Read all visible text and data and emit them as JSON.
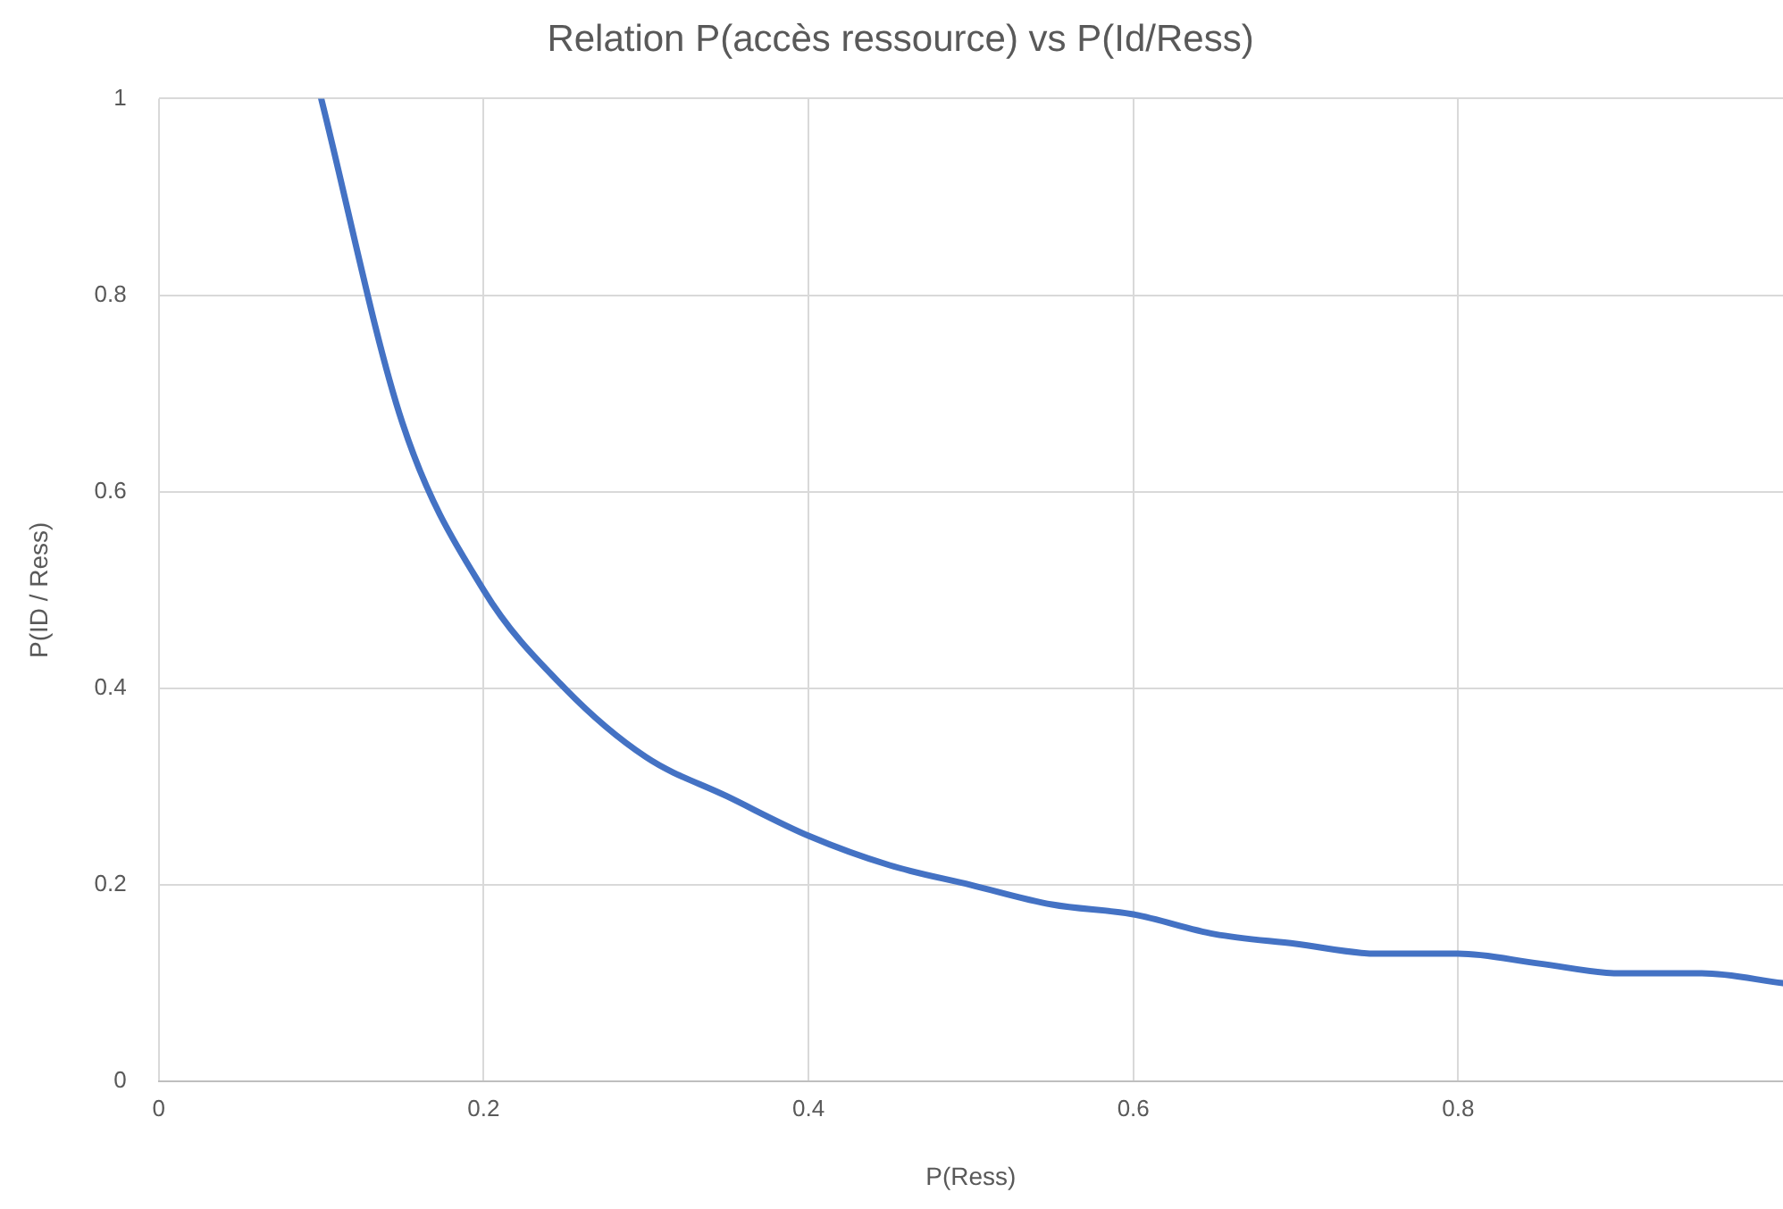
{
  "chart_data": {
    "type": "line",
    "title": "Relation P(accès ressource) vs P(Id/Ress)",
    "xlabel": "P(Ress)",
    "ylabel": "P(ID / Ress)",
    "x": [
      0.1,
      0.15,
      0.2,
      0.25,
      0.3,
      0.35,
      0.4,
      0.45,
      0.5,
      0.55,
      0.6,
      0.65,
      0.7,
      0.75,
      0.8,
      0.85,
      0.9,
      0.95,
      1
    ],
    "series": [
      {
        "color": "#4472c4",
        "values": [
          1,
          0.67,
          0.5,
          0.4,
          0.33,
          0.29,
          0.25,
          0.22,
          0.2,
          0.18,
          0.17,
          0.15,
          0.14,
          0.13,
          0.13,
          0.12,
          0.11,
          0.11,
          0.1
        ]
      }
    ],
    "xlim": [
      0,
      1
    ],
    "xticks": [
      0,
      0.2,
      0.4,
      0.6,
      0.8
    ],
    "ylim": [
      0,
      1
    ],
    "yticks": [
      0,
      0.2,
      0.4,
      0.6,
      0.8,
      1
    ],
    "grid": true,
    "legend": false,
    "marker": "none",
    "line_style": "solid"
  }
}
